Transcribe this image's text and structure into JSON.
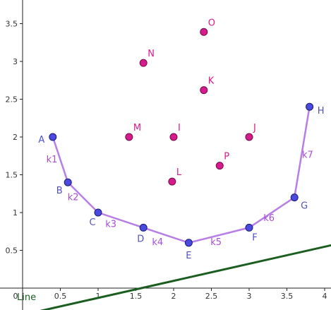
{
  "axes": {
    "x_ticks": [
      "0",
      "0.5",
      "1",
      "1.5",
      "2",
      "2.5",
      "3",
      "3.5",
      "4"
    ],
    "y_ticks": [
      "0.5",
      "1",
      "1.5",
      "2",
      "2.5",
      "3",
      "3.5"
    ],
    "x_tick_values": [
      0,
      0.5,
      1,
      1.5,
      2,
      2.5,
      3,
      3.5,
      4
    ],
    "y_tick_values": [
      0.5,
      1,
      1.5,
      2,
      2.5,
      3,
      3.5
    ]
  },
  "colors": {
    "polyline_points": "#4a4ae0",
    "polyline_labels": "#5050c8",
    "polyline_stroke": "#b77ee6",
    "free_points": "#d81b8c",
    "free_labels": "#d81b8c",
    "segment_labels": "#a64dd6",
    "line": "#1b5e20"
  },
  "polyline_points": [
    {
      "name": "A",
      "x": 0.4,
      "y": 2.0
    },
    {
      "name": "B",
      "x": 0.6,
      "y": 1.4
    },
    {
      "name": "C",
      "x": 1.0,
      "y": 1.0
    },
    {
      "name": "D",
      "x": 1.6,
      "y": 0.8
    },
    {
      "name": "E",
      "x": 2.2,
      "y": 0.6
    },
    {
      "name": "F",
      "x": 3.0,
      "y": 0.8
    },
    {
      "name": "G",
      "x": 3.6,
      "y": 1.2
    },
    {
      "name": "H",
      "x": 3.8,
      "y": 2.4
    }
  ],
  "segments": [
    "k1",
    "k2",
    "k3",
    "k4",
    "k5",
    "k6",
    "k7"
  ],
  "free_points": [
    {
      "name": "I",
      "x": 2.0,
      "y": 2.0
    },
    {
      "name": "J",
      "x": 3.0,
      "y": 2.0
    },
    {
      "name": "K",
      "x": 2.4,
      "y": 2.62
    },
    {
      "name": "L",
      "x": 1.98,
      "y": 1.41
    },
    {
      "name": "M",
      "x": 1.41,
      "y": 2.0
    },
    {
      "name": "N",
      "x": 1.6,
      "y": 2.98
    },
    {
      "name": "O",
      "x": 2.4,
      "y": 3.39
    },
    {
      "name": "P",
      "x": 2.61,
      "y": 1.62
    }
  ],
  "line": {
    "label": "Line",
    "p1": {
      "x": -0.2,
      "y": -0.4
    },
    "p2": {
      "x": 4.1,
      "y": 0.57
    }
  }
}
